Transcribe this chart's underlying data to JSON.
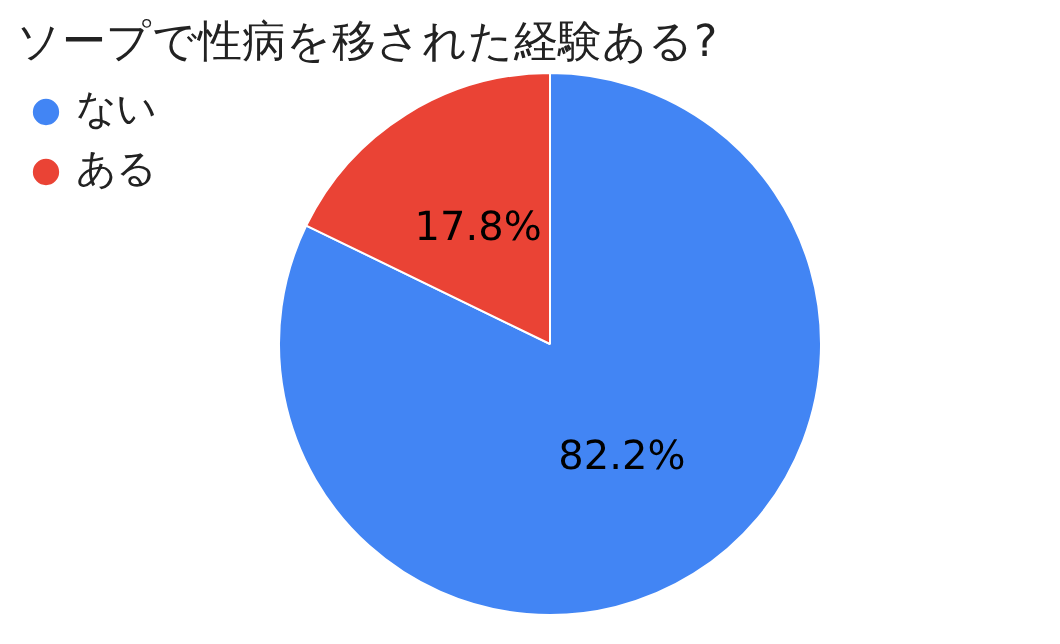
{
  "chart_data": {
    "type": "pie",
    "title": "ソープで性病を移された経験ある?",
    "categories": [
      "ない",
      "ある"
    ],
    "values": [
      82.2,
      17.8
    ],
    "colors": [
      "#4285f4",
      "#ea4335"
    ],
    "value_labels": [
      "82.2%",
      "17.8%"
    ],
    "legend": "top left"
  }
}
